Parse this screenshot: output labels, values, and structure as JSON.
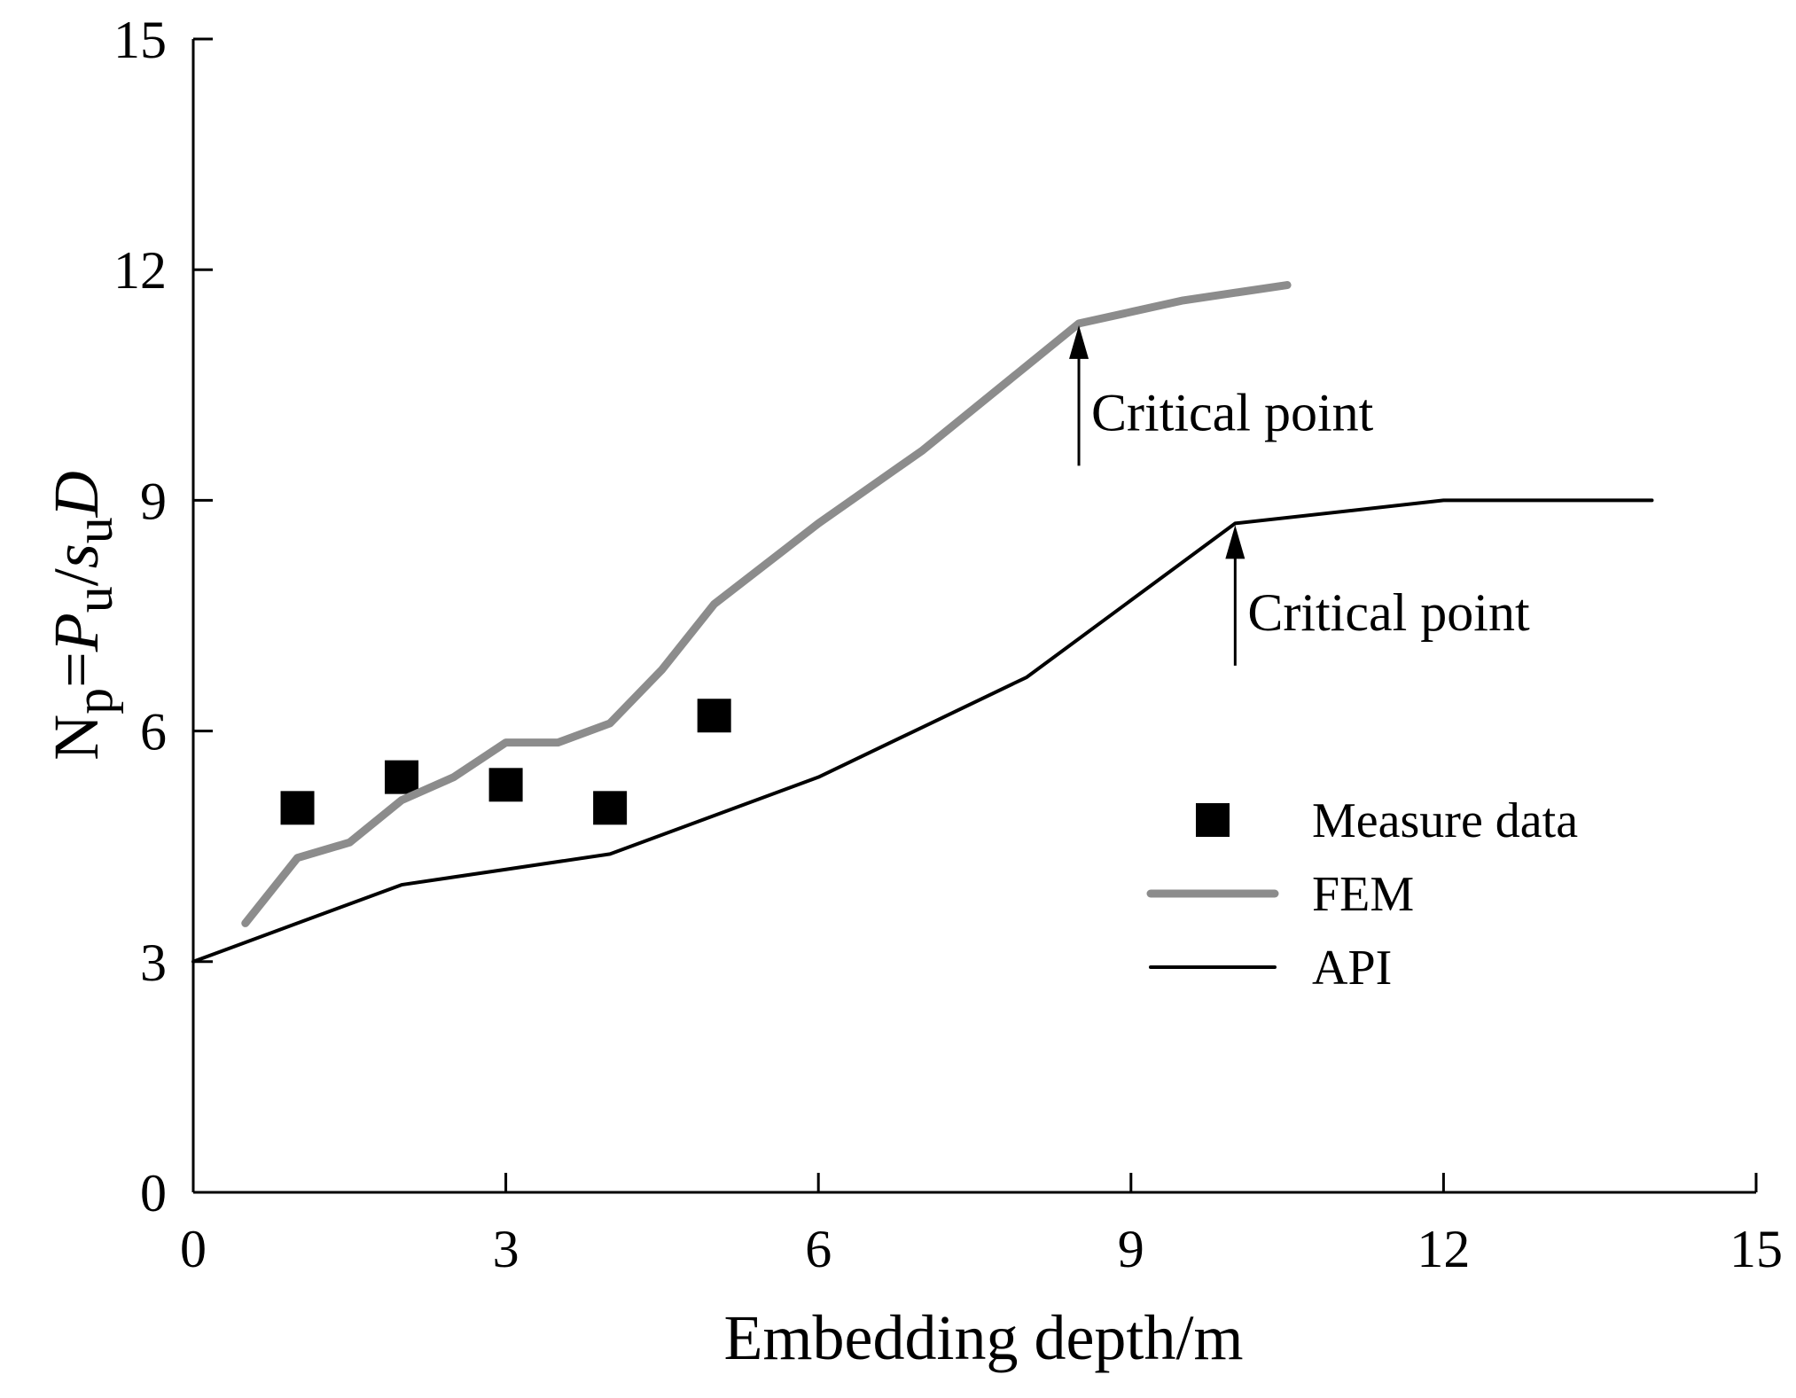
{
  "chart_data": {
    "type": "line",
    "xlabel": "Embedding depth/m",
    "ylabel": {
      "parts": [
        "N",
        "p",
        "=",
        "P",
        "u",
        "/",
        "s",
        "u",
        "D"
      ]
    },
    "xlim": [
      0,
      15
    ],
    "ylim": [
      0,
      15
    ],
    "xticks": [
      0,
      3,
      6,
      9,
      12,
      15
    ],
    "yticks": [
      0,
      3,
      6,
      9,
      12,
      15
    ],
    "grid": false,
    "legend_position": "right-center",
    "series": [
      {
        "name": "Measure data",
        "kind": "scatter",
        "marker": "square",
        "color": "#000000",
        "x": [
          1,
          2,
          3,
          4,
          5
        ],
        "y": [
          5.0,
          5.4,
          5.3,
          5.0,
          6.2
        ]
      },
      {
        "name": "FEM",
        "kind": "line",
        "color": "#8c8c8c",
        "x": [
          0.5,
          1.0,
          1.5,
          2.0,
          2.5,
          3.0,
          3.5,
          4.0,
          4.5,
          5.0,
          6.0,
          7.0,
          8.0,
          8.5,
          9.0,
          9.5,
          10.0,
          10.5
        ],
        "y": [
          3.5,
          4.35,
          4.55,
          5.1,
          5.4,
          5.85,
          5.85,
          6.1,
          6.8,
          7.65,
          8.7,
          9.65,
          10.75,
          11.3,
          11.45,
          11.6,
          11.7,
          11.8
        ]
      },
      {
        "name": "API",
        "kind": "line",
        "color": "#000000",
        "x": [
          0,
          1,
          2,
          3,
          4,
          5,
          6,
          7,
          8,
          9,
          10,
          12,
          14
        ],
        "y": [
          3.0,
          3.5,
          4.0,
          4.2,
          4.4,
          4.9,
          5.4,
          6.05,
          6.7,
          7.7,
          8.7,
          9.0,
          9.0
        ]
      }
    ],
    "annotations": [
      {
        "text": "Critical point",
        "x": 8.5,
        "y": 11.3,
        "arrow_from_y": 9.45
      },
      {
        "text": "Critical point",
        "x": 10.0,
        "y": 8.7,
        "arrow_from_y": 6.85
      }
    ]
  }
}
